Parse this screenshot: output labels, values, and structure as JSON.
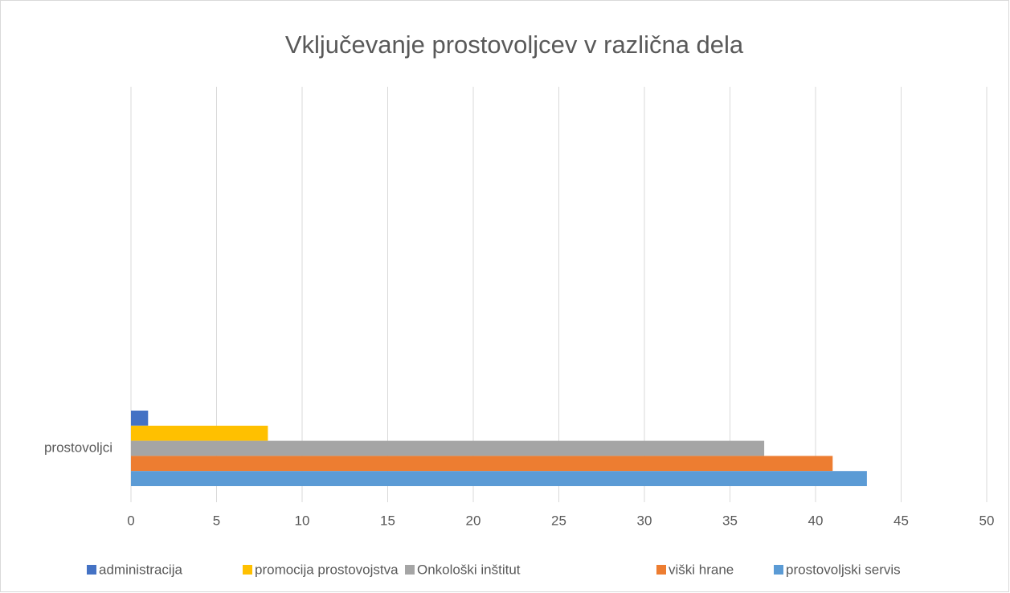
{
  "chart_data": {
    "type": "bar",
    "orientation": "horizontal",
    "title": "Vključevanje prostovoljcev v različna dela",
    "categories": [
      "prostovoljci"
    ],
    "series": [
      {
        "name": "administracija",
        "color": "#4472c4",
        "values": [
          1
        ]
      },
      {
        "name": "promocija prostovojstva",
        "color": "#ffc000",
        "values": [
          8
        ]
      },
      {
        "name": "Onkološki inštitut",
        "color": "#a5a5a5",
        "values": [
          37
        ]
      },
      {
        "name": "viški hrane",
        "color": "#ed7d31",
        "values": [
          41
        ]
      },
      {
        "name": "prostovoljski servis",
        "color": "#5b9bd5",
        "values": [
          43
        ]
      }
    ],
    "xlim": [
      0,
      50
    ],
    "xticks": [
      0,
      5,
      10,
      15,
      20,
      25,
      30,
      35,
      40,
      45,
      50
    ],
    "grid": true,
    "legend": "bottom"
  }
}
